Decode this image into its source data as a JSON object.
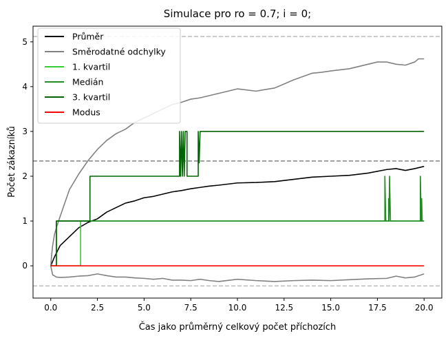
{
  "chart_data": {
    "type": "line",
    "title": "Simulace pro ro = 0.7; i = 0;",
    "xlabel": "Čas jako průměrný celkový počet příchozích",
    "ylabel": "Počet zákazníků",
    "xlim": [
      -0.95,
      20.95
    ],
    "ylim": [
      -0.72,
      5.35
    ],
    "xticks": [
      0.0,
      2.5,
      5.0,
      7.5,
      10.0,
      12.5,
      15.0,
      17.5,
      20.0
    ],
    "xtick_labels": [
      "0.0",
      "2.5",
      "5.0",
      "7.5",
      "10.0",
      "12.5",
      "15.0",
      "17.5",
      "20.0"
    ],
    "yticks": [
      0,
      1,
      2,
      3,
      4,
      5
    ],
    "ytick_labels": [
      "0",
      "1",
      "2",
      "3",
      "4",
      "5"
    ],
    "legend_position": "top-left",
    "grid": false,
    "hlines": [
      {
        "y": 5.12,
        "color": "#bbbbbb",
        "style": "dashed"
      },
      {
        "y": 2.34,
        "color": "#808080",
        "style": "dashed"
      },
      {
        "y": -0.45,
        "color": "#bbbbbb",
        "style": "dashed"
      }
    ],
    "series": [
      {
        "name": "Průměr",
        "color": "#000000",
        "points": [
          [
            0,
            0
          ],
          [
            0.2,
            0.2
          ],
          [
            0.5,
            0.45
          ],
          [
            1,
            0.65
          ],
          [
            1.5,
            0.85
          ],
          [
            2,
            0.97
          ],
          [
            2.5,
            1.05
          ],
          [
            3,
            1.2
          ],
          [
            3.5,
            1.3
          ],
          [
            4,
            1.4
          ],
          [
            4.5,
            1.45
          ],
          [
            5,
            1.52
          ],
          [
            5.5,
            1.55
          ],
          [
            6,
            1.6
          ],
          [
            6.5,
            1.65
          ],
          [
            7,
            1.68
          ],
          [
            7.5,
            1.72
          ],
          [
            8,
            1.75
          ],
          [
            8.5,
            1.78
          ],
          [
            9,
            1.8
          ],
          [
            10,
            1.85
          ],
          [
            11,
            1.86
          ],
          [
            12,
            1.88
          ],
          [
            13,
            1.93
          ],
          [
            14,
            1.98
          ],
          [
            15,
            2.0
          ],
          [
            16,
            2.02
          ],
          [
            17,
            2.07
          ],
          [
            18,
            2.15
          ],
          [
            18.5,
            2.17
          ],
          [
            19,
            2.13
          ],
          [
            19.5,
            2.17
          ],
          [
            20,
            2.22
          ]
        ]
      },
      {
        "name": "Směrodatné odchylky",
        "color": "#808080",
        "points": [
          [
            0,
            0
          ],
          [
            0.05,
            0.25
          ],
          [
            0.1,
            0.45
          ],
          [
            0.2,
            0.7
          ],
          [
            0.3,
            0.85
          ],
          [
            0.5,
            1.1
          ],
          [
            0.75,
            1.4
          ],
          [
            1,
            1.7
          ],
          [
            1.5,
            2.05
          ],
          [
            2,
            2.35
          ],
          [
            2.5,
            2.6
          ],
          [
            3,
            2.8
          ],
          [
            3.5,
            2.95
          ],
          [
            4,
            3.05
          ],
          [
            4.5,
            3.2
          ],
          [
            5,
            3.3
          ],
          [
            5.5,
            3.4
          ],
          [
            6,
            3.5
          ],
          [
            6.5,
            3.6
          ],
          [
            7,
            3.65
          ],
          [
            7.5,
            3.72
          ],
          [
            8,
            3.75
          ],
          [
            8.5,
            3.8
          ],
          [
            9,
            3.85
          ],
          [
            10,
            3.95
          ],
          [
            11,
            3.9
          ],
          [
            12,
            3.97
          ],
          [
            13,
            4.15
          ],
          [
            14,
            4.3
          ],
          [
            14.5,
            4.32
          ],
          [
            15,
            4.35
          ],
          [
            16,
            4.4
          ],
          [
            17,
            4.5
          ],
          [
            17.5,
            4.55
          ],
          [
            18,
            4.55
          ],
          [
            18.5,
            4.5
          ],
          [
            19,
            4.48
          ],
          [
            19.5,
            4.55
          ],
          [
            19.7,
            4.62
          ],
          [
            20,
            4.62
          ]
        ]
      },
      {
        "name": "Směrodatné odchylky (spodní)",
        "color": "#808080",
        "legend": false,
        "points": [
          [
            0,
            0
          ],
          [
            0.1,
            -0.2
          ],
          [
            0.3,
            -0.25
          ],
          [
            0.5,
            -0.26
          ],
          [
            1,
            -0.25
          ],
          [
            1.5,
            -0.23
          ],
          [
            2,
            -0.22
          ],
          [
            2.5,
            -0.18
          ],
          [
            3,
            -0.22
          ],
          [
            3.5,
            -0.25
          ],
          [
            4,
            -0.25
          ],
          [
            4.5,
            -0.27
          ],
          [
            5,
            -0.28
          ],
          [
            5.5,
            -0.3
          ],
          [
            6,
            -0.28
          ],
          [
            6.5,
            -0.32
          ],
          [
            7,
            -0.32
          ],
          [
            7.5,
            -0.33
          ],
          [
            8,
            -0.3
          ],
          [
            8.5,
            -0.33
          ],
          [
            9,
            -0.35
          ],
          [
            10,
            -0.3
          ],
          [
            11,
            -0.33
          ],
          [
            12,
            -0.35
          ],
          [
            13,
            -0.33
          ],
          [
            14,
            -0.32
          ],
          [
            15,
            -0.33
          ],
          [
            16,
            -0.31
          ],
          [
            17,
            -0.29
          ],
          [
            18,
            -0.28
          ],
          [
            18.5,
            -0.23
          ],
          [
            19,
            -0.27
          ],
          [
            19.5,
            -0.25
          ],
          [
            20,
            -0.18
          ]
        ]
      },
      {
        "name": "1. kvartil",
        "color": "#32cd32",
        "points": [
          [
            0,
            0
          ],
          [
            1.6,
            0
          ],
          [
            1.6,
            1
          ],
          [
            20,
            1
          ]
        ]
      },
      {
        "name": "Medián",
        "color": "#228b22",
        "points": [
          [
            0,
            0
          ],
          [
            0.3,
            0
          ],
          [
            0.3,
            1
          ],
          [
            17.9,
            1
          ],
          [
            17.9,
            2
          ],
          [
            17.95,
            1
          ],
          [
            18.1,
            1
          ],
          [
            18.1,
            1.5
          ],
          [
            18.12,
            1
          ],
          [
            18.15,
            2
          ],
          [
            18.2,
            1
          ],
          [
            19.8,
            1
          ],
          [
            19.8,
            2
          ],
          [
            19.85,
            1
          ],
          [
            19.87,
            1.5
          ],
          [
            19.9,
            1
          ],
          [
            20,
            1
          ]
        ]
      },
      {
        "name": "3. kvartil",
        "color": "#006400",
        "points": [
          [
            0,
            0
          ],
          [
            0.3,
            0
          ],
          [
            0.3,
            1
          ],
          [
            2.1,
            1
          ],
          [
            2.1,
            2
          ],
          [
            6.9,
            2
          ],
          [
            6.9,
            3
          ],
          [
            6.95,
            2
          ],
          [
            7.0,
            3
          ],
          [
            7.05,
            2
          ],
          [
            7.1,
            3
          ],
          [
            7.15,
            2
          ],
          [
            7.2,
            3
          ],
          [
            7.3,
            3
          ],
          [
            7.3,
            2
          ],
          [
            7.9,
            2
          ],
          [
            7.9,
            3
          ],
          [
            7.95,
            2.3
          ],
          [
            8.0,
            3
          ],
          [
            20,
            3
          ]
        ]
      },
      {
        "name": "Modus",
        "color": "#ff0000",
        "points": [
          [
            0,
            0
          ],
          [
            20,
            0
          ]
        ]
      }
    ]
  }
}
